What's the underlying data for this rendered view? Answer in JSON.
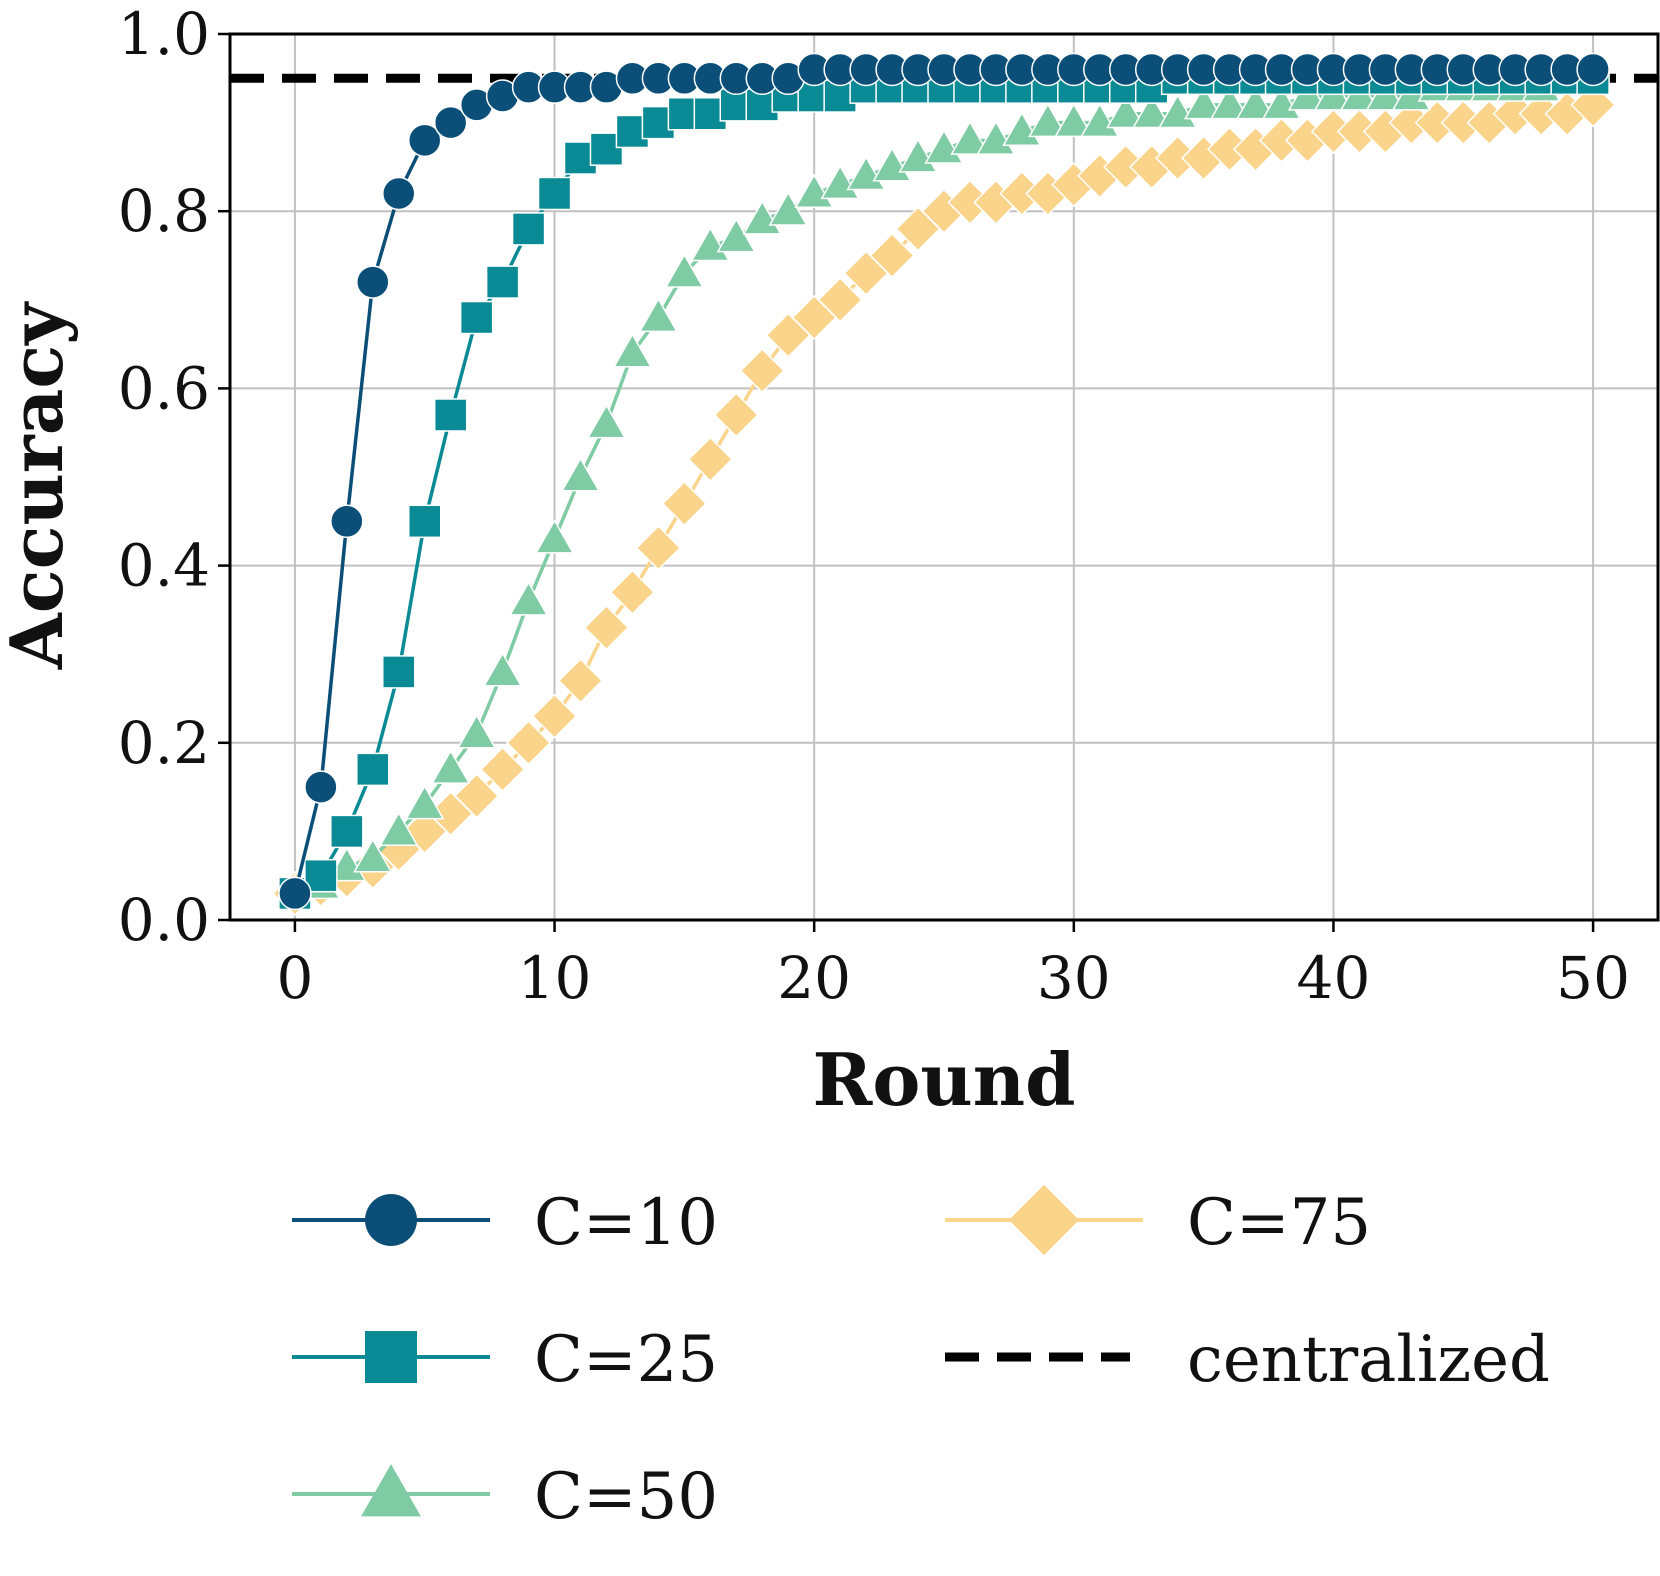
{
  "chart_data": {
    "type": "line",
    "xlabel": "Round",
    "ylabel": "Accuracy",
    "xlim": [
      -2.5,
      52.5
    ],
    "ylim": [
      0.0,
      1.0
    ],
    "x_ticks": [
      0,
      10,
      20,
      30,
      40,
      50
    ],
    "x_tick_labels": [
      "0",
      "10",
      "20",
      "30",
      "40",
      "50"
    ],
    "y_ticks": [
      0.0,
      0.2,
      0.4,
      0.6,
      0.8,
      1.0
    ],
    "y_tick_labels": [
      "0.0",
      "0.2",
      "0.4",
      "0.6",
      "0.8",
      "1.0"
    ],
    "grid": true,
    "legend_position": "below plot, two columns",
    "x": [
      0,
      1,
      2,
      3,
      4,
      5,
      6,
      7,
      8,
      9,
      10,
      11,
      12,
      13,
      14,
      15,
      16,
      17,
      18,
      19,
      20,
      21,
      22,
      23,
      24,
      25,
      26,
      27,
      28,
      29,
      30,
      31,
      32,
      33,
      34,
      35,
      36,
      37,
      38,
      39,
      40,
      41,
      42,
      43,
      44,
      45,
      46,
      47,
      48,
      49,
      50
    ],
    "series": [
      {
        "name": "C=10",
        "color": "#0b4f78",
        "marker": "circle",
        "values": [
          0.03,
          0.15,
          0.45,
          0.72,
          0.82,
          0.88,
          0.9,
          0.92,
          0.93,
          0.94,
          0.94,
          0.94,
          0.94,
          0.95,
          0.95,
          0.95,
          0.95,
          0.95,
          0.95,
          0.95,
          0.96,
          0.96,
          0.96,
          0.96,
          0.96,
          0.96,
          0.96,
          0.96,
          0.96,
          0.96,
          0.96,
          0.96,
          0.96,
          0.96,
          0.96,
          0.96,
          0.96,
          0.96,
          0.96,
          0.96,
          0.96,
          0.96,
          0.96,
          0.96,
          0.96,
          0.96,
          0.96,
          0.96,
          0.96,
          0.96,
          0.96
        ]
      },
      {
        "name": "C=25",
        "color": "#0a8a94",
        "marker": "square",
        "values": [
          0.03,
          0.05,
          0.1,
          0.17,
          0.28,
          0.45,
          0.57,
          0.68,
          0.72,
          0.78,
          0.82,
          0.86,
          0.87,
          0.89,
          0.9,
          0.91,
          0.91,
          0.92,
          0.92,
          0.93,
          0.93,
          0.93,
          0.94,
          0.94,
          0.94,
          0.94,
          0.94,
          0.94,
          0.94,
          0.94,
          0.94,
          0.94,
          0.94,
          0.94,
          0.95,
          0.95,
          0.95,
          0.95,
          0.95,
          0.95,
          0.95,
          0.95,
          0.95,
          0.95,
          0.95,
          0.95,
          0.95,
          0.95,
          0.95,
          0.95,
          0.95
        ]
      },
      {
        "name": "C=50",
        "color": "#7fcba4",
        "marker": "triangle",
        "values": [
          0.03,
          0.04,
          0.06,
          0.07,
          0.1,
          0.13,
          0.17,
          0.21,
          0.28,
          0.36,
          0.43,
          0.5,
          0.56,
          0.64,
          0.68,
          0.73,
          0.76,
          0.77,
          0.79,
          0.8,
          0.82,
          0.83,
          0.84,
          0.85,
          0.86,
          0.87,
          0.88,
          0.88,
          0.89,
          0.9,
          0.9,
          0.9,
          0.91,
          0.91,
          0.91,
          0.92,
          0.92,
          0.92,
          0.92,
          0.93,
          0.93,
          0.93,
          0.93,
          0.93,
          0.94,
          0.94,
          0.94,
          0.94,
          0.94,
          0.95,
          0.95
        ]
      },
      {
        "name": "C=75",
        "color": "#f9d48a",
        "marker": "diamond",
        "values": [
          0.03,
          0.04,
          0.05,
          0.06,
          0.08,
          0.1,
          0.12,
          0.14,
          0.17,
          0.2,
          0.23,
          0.27,
          0.33,
          0.37,
          0.42,
          0.47,
          0.52,
          0.57,
          0.62,
          0.66,
          0.68,
          0.7,
          0.73,
          0.75,
          0.78,
          0.8,
          0.81,
          0.81,
          0.82,
          0.82,
          0.83,
          0.84,
          0.85,
          0.85,
          0.86,
          0.86,
          0.87,
          0.87,
          0.88,
          0.88,
          0.89,
          0.89,
          0.89,
          0.9,
          0.9,
          0.9,
          0.9,
          0.91,
          0.91,
          0.91,
          0.92
        ]
      }
    ],
    "reference_lines": [
      {
        "name": "centralized",
        "value": 0.95,
        "color": "#000000",
        "style": "dashed"
      }
    ]
  }
}
